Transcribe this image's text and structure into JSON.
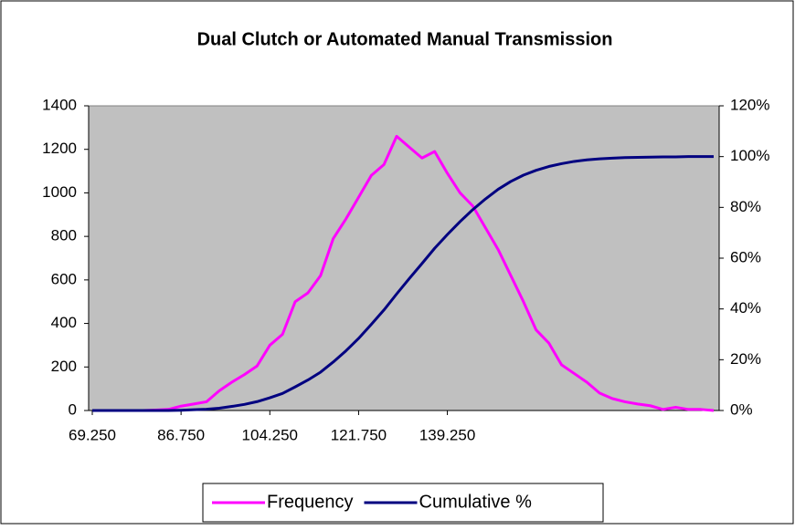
{
  "chart_data": {
    "type": "line",
    "title": "Dual Clutch or Automated Manual Transmission",
    "categories": [
      "69.250",
      null,
      null,
      null,
      null,
      null,
      null,
      "86.750",
      null,
      null,
      null,
      null,
      null,
      null,
      "104.250",
      null,
      null,
      null,
      null,
      null,
      null,
      "121.750",
      null,
      null,
      null,
      null,
      null,
      null,
      "139.250",
      null,
      null,
      null,
      null,
      null,
      null,
      null,
      null,
      null,
      null,
      null,
      null,
      null,
      null,
      null,
      null,
      null,
      null,
      null,
      null,
      null
    ],
    "series": [
      {
        "name": "Frequency",
        "color": "#ff00ff",
        "values": [
          0,
          0,
          0,
          0,
          0,
          2,
          5,
          20,
          30,
          40,
          90,
          130,
          165,
          205,
          300,
          350,
          500,
          540,
          620,
          790,
          880,
          980,
          1080,
          1130,
          1260,
          1210,
          1160,
          1190,
          1090,
          1000,
          940,
          840,
          740,
          620,
          500,
          370,
          310,
          210,
          170,
          130,
          80,
          55,
          40,
          30,
          22,
          5,
          15,
          5,
          5,
          0
        ]
      },
      {
        "name": "Cumulative %",
        "color": "#000080",
        "axis": "y2",
        "values": [
          0,
          0,
          0,
          0,
          0,
          0,
          0,
          0.1,
          0.3,
          0.5,
          0.9,
          1.6,
          2.4,
          3.5,
          5.0,
          6.7,
          9.3,
          12.0,
          15.1,
          19.1,
          23.5,
          28.4,
          33.9,
          39.6,
          45.9,
          52.0,
          57.9,
          63.9,
          69.3,
          74.4,
          79.1,
          83.3,
          87.1,
          90.2,
          92.7,
          94.6,
          96.1,
          97.2,
          98.1,
          98.7,
          99.1,
          99.4,
          99.6,
          99.7,
          99.8,
          99.9,
          99.9,
          100,
          100,
          100
        ]
      }
    ],
    "ylim": [
      0,
      1400
    ],
    "yticks": [
      0,
      200,
      400,
      600,
      800,
      1000,
      1200,
      1400
    ],
    "y2lim": [
      0,
      120
    ],
    "y2ticks": [
      {
        "value": 0,
        "label": "0%"
      },
      {
        "value": 20,
        "label": "20%"
      },
      {
        "value": 40,
        "label": "40%"
      },
      {
        "value": 60,
        "label": "60%"
      },
      {
        "value": 80,
        "label": "80%"
      },
      {
        "value": 100,
        "label": "100%"
      },
      {
        "value": 120,
        "label": "120%"
      }
    ],
    "plot_background": "#c0c0c0",
    "legend": "bottom"
  }
}
